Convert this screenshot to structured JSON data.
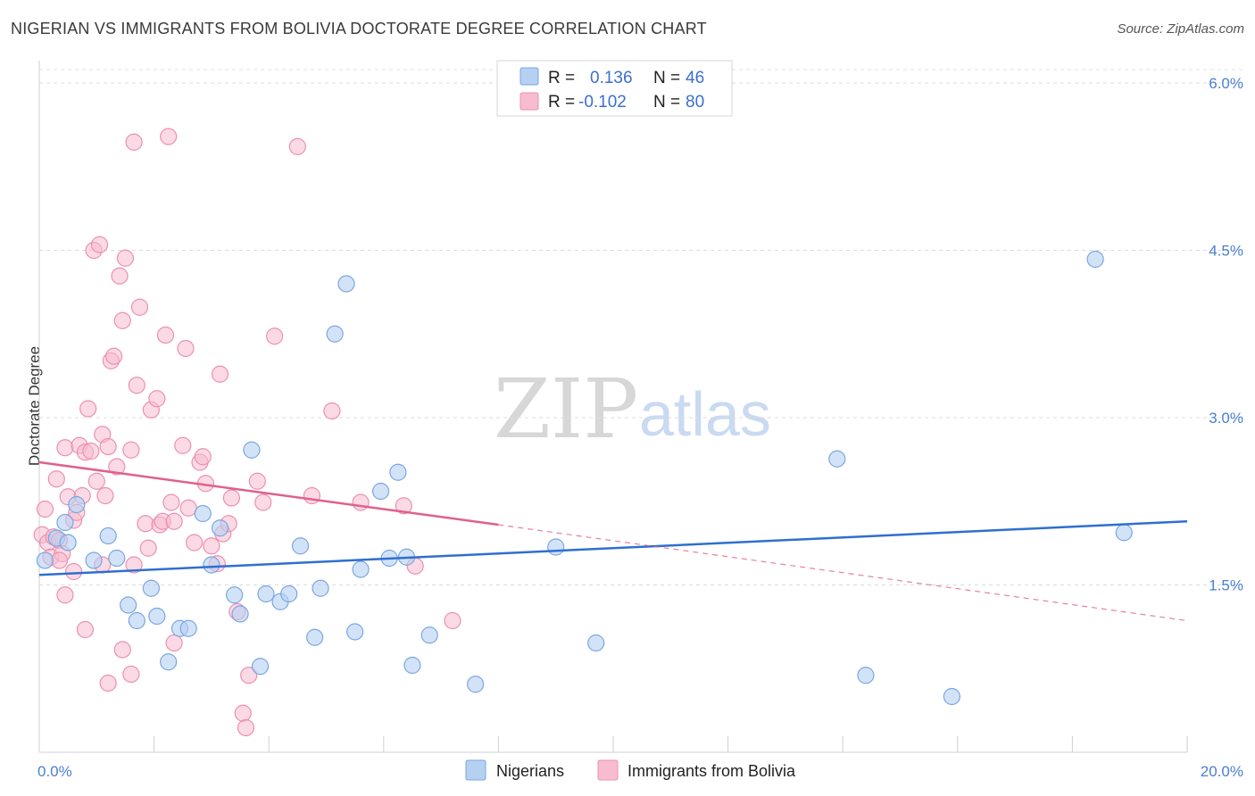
{
  "title": "NIGERIAN VS IMMIGRANTS FROM BOLIVIA DOCTORATE DEGREE CORRELATION CHART",
  "source": "Source: ZipAtlas.com",
  "watermark": {
    "zip": "ZIP",
    "atlas": "atlas"
  },
  "legend_box": {
    "rows": [
      {
        "r_label": "R =",
        "r_value": "0.136",
        "n_label": "N =",
        "n_value": "46"
      },
      {
        "r_label": "R =",
        "r_value": "-0.102",
        "n_label": "N =",
        "n_value": "80"
      }
    ]
  },
  "bottom_legend": [
    "Nigerians",
    "Immigrants from Bolivia"
  ],
  "colors": {
    "nigerians_fill": "#b6d0f2",
    "nigerians_stroke": "#7aa6e0",
    "nigerians_line": "#2f6fd0",
    "bolivia_fill": "#f7bcd0",
    "bolivia_stroke": "#ec8fae",
    "bolivia_line": "#e0608c",
    "tick_text": "#4a7fd0"
  },
  "chart_data": {
    "type": "scatter",
    "title": "NIGERIAN VS IMMIGRANTS FROM BOLIVIA DOCTORATE DEGREE CORRELATION CHART",
    "xlabel": "",
    "ylabel": "Doctorate Degree",
    "xlim": [
      0,
      20
    ],
    "ylim": [
      0,
      6.2
    ],
    "x_tick_labels": [
      "0.0%",
      "20.0%"
    ],
    "y_tick_values": [
      1.5,
      3.0,
      4.5,
      6.0
    ],
    "y_tick_labels": [
      "1.5%",
      "3.0%",
      "4.5%",
      "6.0%"
    ],
    "grid": true,
    "series": [
      {
        "name": "Nigerians",
        "R": 0.136,
        "N": 46,
        "trend": {
          "x": [
            0,
            20
          ],
          "y": [
            1.59,
            2.07
          ]
        },
        "points": [
          [
            0.1,
            1.72
          ],
          [
            0.3,
            1.92
          ],
          [
            0.5,
            1.88
          ],
          [
            0.45,
            2.06
          ],
          [
            0.65,
            2.22
          ],
          [
            0.95,
            1.72
          ],
          [
            1.2,
            1.94
          ],
          [
            1.35,
            1.74
          ],
          [
            1.55,
            1.32
          ],
          [
            1.7,
            1.18
          ],
          [
            1.95,
            1.47
          ],
          [
            2.05,
            1.22
          ],
          [
            2.25,
            0.81
          ],
          [
            2.45,
            1.11
          ],
          [
            2.6,
            1.11
          ],
          [
            2.85,
            2.14
          ],
          [
            3.0,
            1.68
          ],
          [
            3.15,
            2.01
          ],
          [
            3.4,
            1.41
          ],
          [
            3.5,
            1.24
          ],
          [
            3.7,
            2.71
          ],
          [
            3.85,
            0.77
          ],
          [
            3.95,
            1.42
          ],
          [
            4.2,
            1.35
          ],
          [
            4.35,
            1.42
          ],
          [
            4.55,
            1.85
          ],
          [
            4.8,
            1.03
          ],
          [
            4.9,
            1.47
          ],
          [
            5.15,
            3.75
          ],
          [
            5.35,
            4.2
          ],
          [
            5.5,
            1.08
          ],
          [
            5.6,
            1.64
          ],
          [
            5.95,
            2.34
          ],
          [
            6.1,
            1.74
          ],
          [
            6.25,
            2.51
          ],
          [
            6.4,
            1.75
          ],
          [
            6.5,
            0.78
          ],
          [
            6.8,
            1.05
          ],
          [
            7.6,
            0.61
          ],
          [
            9.0,
            1.84
          ],
          [
            9.7,
            0.98
          ],
          [
            13.9,
            2.63
          ],
          [
            14.4,
            0.69
          ],
          [
            15.9,
            0.5
          ],
          [
            18.4,
            4.42
          ],
          [
            18.9,
            1.97
          ]
        ]
      },
      {
        "name": "Immigrants from Bolivia",
        "R": -0.102,
        "N": 80,
        "trend": {
          "x": [
            0,
            8
          ],
          "y": [
            2.6,
            2.04
          ]
        },
        "trend_dashed": {
          "x": [
            8,
            20
          ],
          "y": [
            2.04,
            1.18
          ]
        },
        "points": [
          [
            0.05,
            1.95
          ],
          [
            0.1,
            2.18
          ],
          [
            0.15,
            1.88
          ],
          [
            0.2,
            1.75
          ],
          [
            0.25,
            1.93
          ],
          [
            0.3,
            2.45
          ],
          [
            0.35,
            1.9
          ],
          [
            0.4,
            1.78
          ],
          [
            0.45,
            2.73
          ],
          [
            0.5,
            2.29
          ],
          [
            0.45,
            1.41
          ],
          [
            0.6,
            2.08
          ],
          [
            0.65,
            2.15
          ],
          [
            0.75,
            2.3
          ],
          [
            0.7,
            2.75
          ],
          [
            0.8,
            2.69
          ],
          [
            0.85,
            3.08
          ],
          [
            0.9,
            2.7
          ],
          [
            0.95,
            4.5
          ],
          [
            1.0,
            2.43
          ],
          [
            1.05,
            4.55
          ],
          [
            1.1,
            2.85
          ],
          [
            1.15,
            2.3
          ],
          [
            1.2,
            2.74
          ],
          [
            1.25,
            3.51
          ],
          [
            1.3,
            3.55
          ],
          [
            1.35,
            2.56
          ],
          [
            1.4,
            4.27
          ],
          [
            1.45,
            3.87
          ],
          [
            1.5,
            4.43
          ],
          [
            1.6,
            2.71
          ],
          [
            1.65,
            5.47
          ],
          [
            1.7,
            3.29
          ],
          [
            1.75,
            3.99
          ],
          [
            1.85,
            2.05
          ],
          [
            1.9,
            1.83
          ],
          [
            1.95,
            3.07
          ],
          [
            2.05,
            3.17
          ],
          [
            2.1,
            2.04
          ],
          [
            2.15,
            2.07
          ],
          [
            2.2,
            3.74
          ],
          [
            2.25,
            5.52
          ],
          [
            2.3,
            2.24
          ],
          [
            2.35,
            2.07
          ],
          [
            2.5,
            2.75
          ],
          [
            2.55,
            3.62
          ],
          [
            2.6,
            2.19
          ],
          [
            2.7,
            1.88
          ],
          [
            2.8,
            2.6
          ],
          [
            2.85,
            2.65
          ],
          [
            2.9,
            2.41
          ],
          [
            3.0,
            1.85
          ],
          [
            3.1,
            1.69
          ],
          [
            3.15,
            3.39
          ],
          [
            3.2,
            1.96
          ],
          [
            3.3,
            2.05
          ],
          [
            3.35,
            2.28
          ],
          [
            3.45,
            1.26
          ],
          [
            3.55,
            0.35
          ],
          [
            3.6,
            0.22
          ],
          [
            3.65,
            0.69
          ],
          [
            3.8,
            2.43
          ],
          [
            3.9,
            2.24
          ],
          [
            4.1,
            3.73
          ],
          [
            4.5,
            5.43
          ],
          [
            4.75,
            2.3
          ],
          [
            5.1,
            3.06
          ],
          [
            5.6,
            2.24
          ],
          [
            6.35,
            2.21
          ],
          [
            6.55,
            1.67
          ],
          [
            7.2,
            1.18
          ],
          [
            1.2,
            0.62
          ],
          [
            1.45,
            0.92
          ],
          [
            1.6,
            0.7
          ],
          [
            2.35,
            0.98
          ],
          [
            1.65,
            1.68
          ],
          [
            1.1,
            1.68
          ],
          [
            0.6,
            1.62
          ],
          [
            0.35,
            1.72
          ],
          [
            0.8,
            1.1
          ]
        ]
      }
    ]
  }
}
